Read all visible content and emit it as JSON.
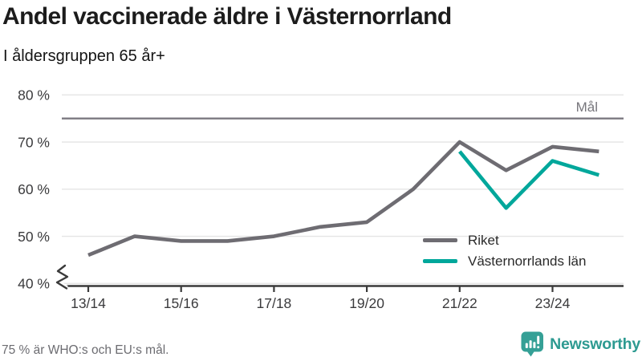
{
  "header": {
    "title": "Andel vaccinerade äldre i Västernorrland",
    "subtitle": "I åldersgruppen 65 år+"
  },
  "chart_data": {
    "type": "line",
    "x": [
      "13/14",
      "14/15",
      "15/16",
      "16/17",
      "17/18",
      "18/19",
      "19/20",
      "20/21",
      "21/22",
      "22/23",
      "23/24",
      "24/25"
    ],
    "x_tick_labels": [
      "13/14",
      "15/16",
      "17/18",
      "19/20",
      "21/22",
      "23/24"
    ],
    "y_ticks": [
      40,
      50,
      60,
      70,
      80
    ],
    "y_tick_suffix": " %",
    "ylim": [
      40,
      80
    ],
    "axis_break_at_bottom": true,
    "grid": "horizontal",
    "target": {
      "value": 75,
      "label": "Mål",
      "color": "#7b7980"
    },
    "series": [
      {
        "name": "Riket",
        "color": "#6e6c72",
        "values": [
          46,
          50,
          49,
          49,
          50,
          52,
          53,
          60,
          70,
          64,
          69,
          68
        ]
      },
      {
        "name": "Västernorrlands län",
        "color": "#00a79b",
        "values": [
          null,
          null,
          null,
          null,
          null,
          null,
          null,
          null,
          68,
          56,
          66,
          63
        ]
      }
    ],
    "legend_position": "inside-bottom-right",
    "axis_color": "#3a3a3a",
    "gridline_color": "#e4e4e4",
    "tick_label_color": "#3b3b3d"
  },
  "footer": {
    "note": "75 % är WHO:s och EU:s mål.",
    "brand_name": "Newsworthy",
    "brand_color": "#2d9a91"
  }
}
